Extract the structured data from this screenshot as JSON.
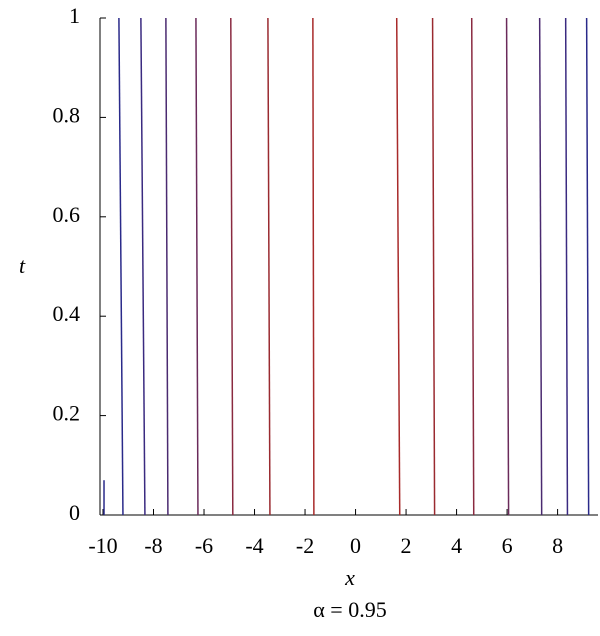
{
  "chart_data": {
    "type": "contour",
    "xlabel": "x",
    "ylabel": "t",
    "caption": "α = 0.95",
    "xlim": [
      -10,
      9.6
    ],
    "ylim": [
      0,
      1
    ],
    "xticks": [
      -10,
      -8,
      -6,
      -4,
      -2,
      0,
      2,
      4,
      6,
      8
    ],
    "yticks": [
      0,
      0.2,
      0.4,
      0.6,
      0.8,
      1
    ],
    "series": [
      {
        "color": "#2a2a8a",
        "x": [
          -9.96,
          -9.96
        ],
        "y": [
          0.07,
          0
        ]
      },
      {
        "color": "#2a2a8a",
        "x": [
          -9.37,
          -9.21
        ],
        "y": [
          1,
          0
        ]
      },
      {
        "color": "#3a2a80",
        "x": [
          -8.5,
          -8.34
        ],
        "y": [
          1,
          0
        ]
      },
      {
        "color": "#4a2a70",
        "x": [
          -7.51,
          -7.43
        ],
        "y": [
          1,
          0
        ]
      },
      {
        "color": "#6a2a5a",
        "x": [
          -6.32,
          -6.24
        ],
        "y": [
          1,
          0
        ]
      },
      {
        "color": "#8a2a40",
        "x": [
          -4.94,
          -4.86
        ],
        "y": [
          1,
          0
        ]
      },
      {
        "color": "#9a2a30",
        "x": [
          -3.47,
          -3.39
        ],
        "y": [
          1,
          0
        ]
      },
      {
        "color": "#a82a2a",
        "x": [
          -1.69,
          -1.65
        ],
        "y": [
          1,
          0
        ]
      },
      {
        "color": "#a82a2a",
        "x": [
          1.63,
          1.75
        ],
        "y": [
          1,
          0
        ]
      },
      {
        "color": "#9a2a30",
        "x": [
          3.05,
          3.13
        ],
        "y": [
          1,
          0
        ]
      },
      {
        "color": "#8a2a40",
        "x": [
          4.6,
          4.68
        ],
        "y": [
          1,
          0
        ]
      },
      {
        "color": "#6a2a5a",
        "x": [
          5.98,
          6.06
        ],
        "y": [
          1,
          0
        ]
      },
      {
        "color": "#4a2a70",
        "x": [
          7.29,
          7.37
        ],
        "y": [
          1,
          0
        ]
      },
      {
        "color": "#3a2a80",
        "x": [
          8.32,
          8.39
        ],
        "y": [
          1,
          0
        ]
      },
      {
        "color": "#2a2a8a",
        "x": [
          9.15,
          9.23
        ],
        "y": [
          1,
          0
        ]
      }
    ]
  }
}
